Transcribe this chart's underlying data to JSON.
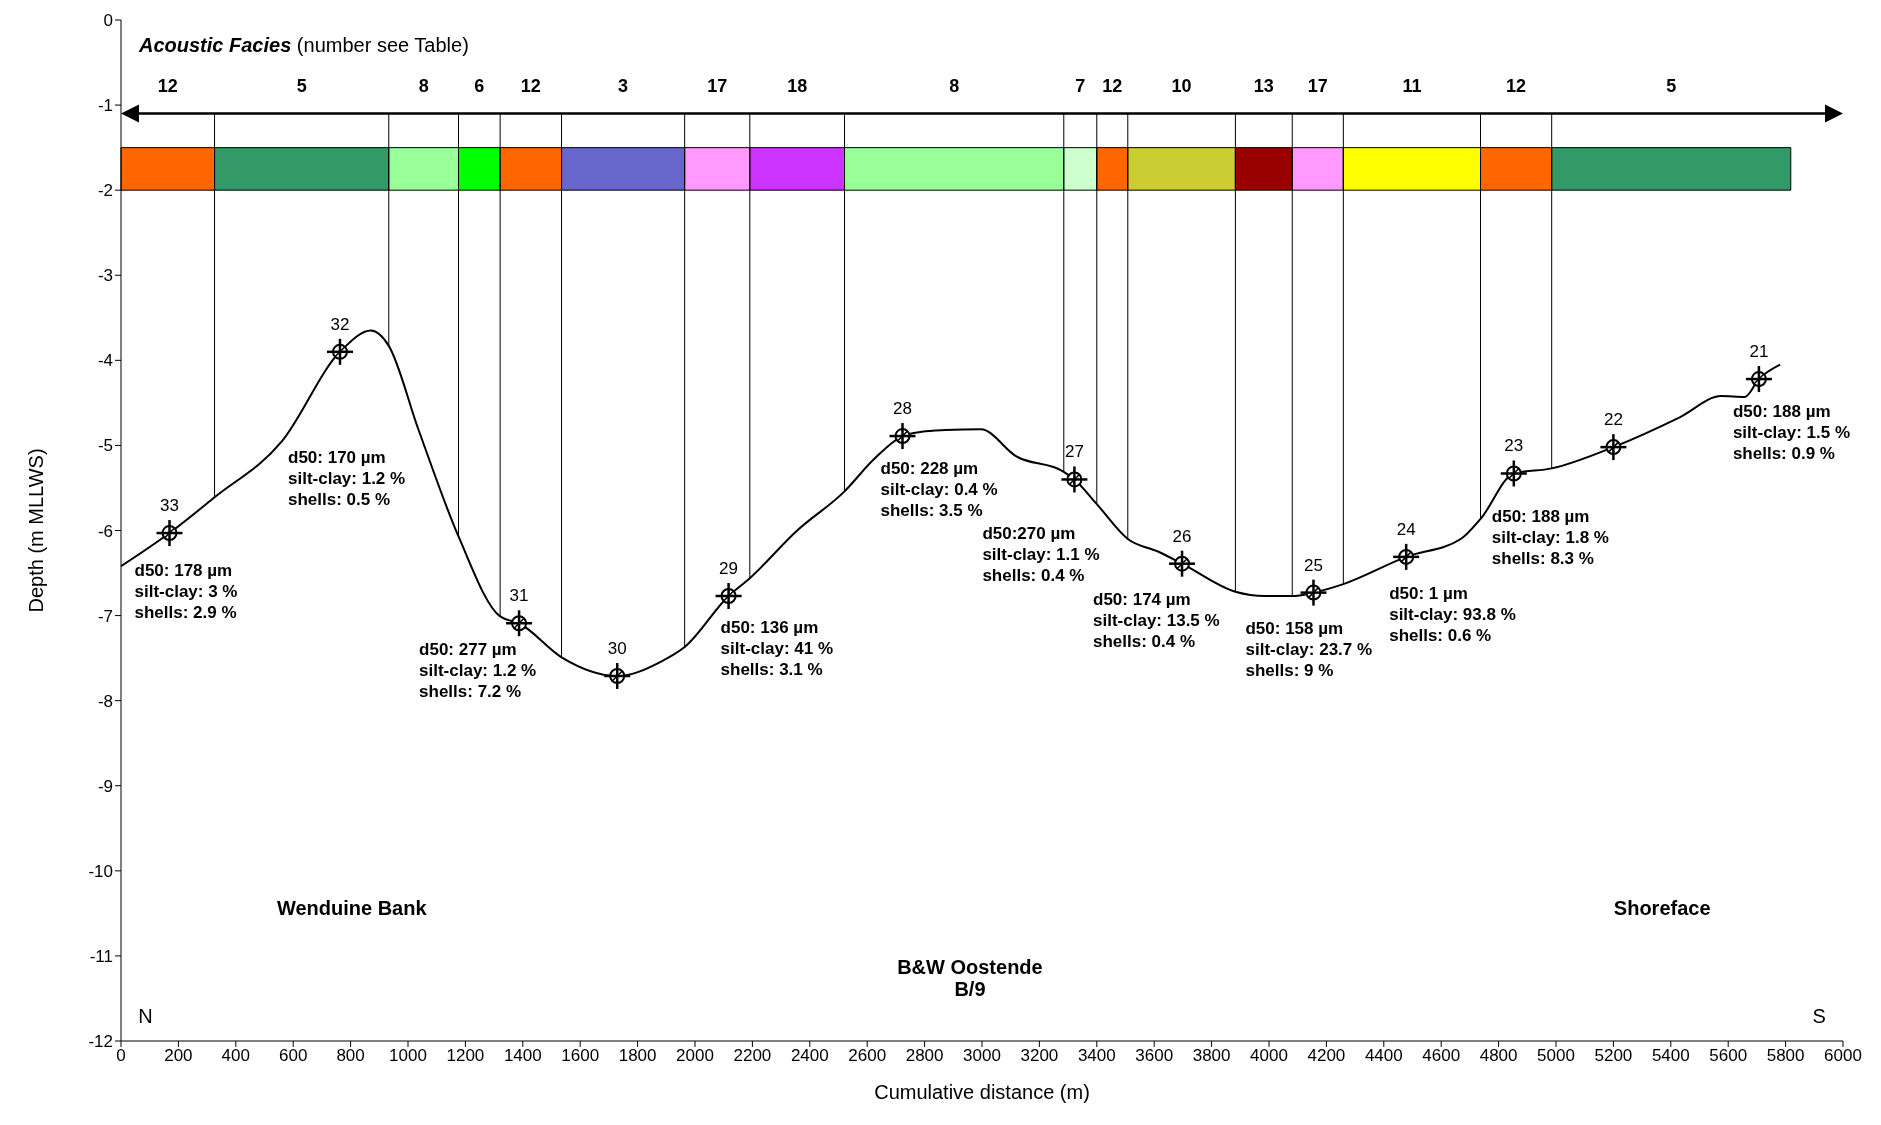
{
  "chart_data": {
    "type": "line",
    "xlabel": "Cumulative distance (m)",
    "ylabel": "Depth (m MLLWS)",
    "legend_title": "Acoustic Facies",
    "xlim": [
      0,
      6000
    ],
    "xticks": [
      0,
      200,
      400,
      600,
      800,
      1000,
      1200,
      1400,
      1600,
      1800,
      2000,
      2200,
      2400,
      2600,
      2800,
      3000,
      3200,
      3400,
      3600,
      3800,
      4000,
      4200,
      4400,
      4600,
      4800,
      5000,
      5200,
      5400,
      5600,
      5800,
      6000
    ],
    "ylim": [
      -12,
      0
    ],
    "yticks": [
      -12,
      -11,
      -10,
      -9,
      -8,
      -7,
      -6,
      -5,
      -4,
      -3,
      -2,
      -1,
      0
    ],
    "grid": false,
    "legend": false,
    "series": [
      {
        "color": "#000000",
        "line_style": "solid",
        "x": [
          0,
          169,
          326,
          561,
          763,
          871,
          933,
          1036,
          1176,
          1321,
          1387,
          1535,
          1729,
          1882,
          1964,
          2117,
          2191,
          2356,
          2521,
          2624,
          2723,
          2790,
          2872,
          2996,
          3120,
          3285,
          3322,
          3400,
          3508,
          3615,
          3697,
          3883,
          3986,
          4081,
          4155,
          4259,
          4478,
          4668,
          4738,
          4853,
          4985,
          5200,
          5431,
          5576,
          5658,
          5707,
          5781
        ],
        "values": [
          -6.42,
          -6.03,
          -5.61,
          -4.95,
          -3.9,
          -3.65,
          -3.83,
          -4.81,
          -6.07,
          -7.01,
          -7.09,
          -7.49,
          -7.71,
          -7.54,
          -7.37,
          -6.77,
          -6.56,
          -6.0,
          -5.54,
          -5.16,
          -4.89,
          -4.84,
          -4.82,
          -4.81,
          -5.13,
          -5.31,
          -5.4,
          -5.69,
          -6.1,
          -6.25,
          -6.39,
          -6.72,
          -6.77,
          -6.77,
          -6.73,
          -6.63,
          -6.31,
          -6.1,
          -5.86,
          -5.33,
          -5.27,
          -5.02,
          -4.67,
          -4.42,
          -4.43,
          -4.22,
          -4.05
        ]
      },
      {
        "type": "scatter",
        "color": "#000000",
        "marker": "circle",
        "x": [
          169,
          763,
          1387,
          1729,
          2117,
          2723,
          3322,
          3697,
          4155,
          4478,
          4853,
          5200,
          5707
        ],
        "values": [
          -6.03,
          -3.9,
          -7.09,
          -7.71,
          -6.77,
          -4.89,
          -5.4,
          -6.39,
          -6.73,
          -6.31,
          -5.33,
          -5.02,
          -4.22
        ]
      }
    ],
    "bands": [
      {
        "axis": "x",
        "from": 0,
        "to": 326,
        "label": "12",
        "color": "#ff6600"
      },
      {
        "axis": "x",
        "from": 326,
        "to": 933,
        "label": "5",
        "color": "#339966"
      },
      {
        "axis": "x",
        "from": 933,
        "to": 1176,
        "label": "8",
        "color": "#99ff99"
      },
      {
        "axis": "x",
        "from": 1176,
        "to": 1321,
        "label": "6",
        "color": "#00ff00"
      },
      {
        "axis": "x",
        "from": 1321,
        "to": 1535,
        "label": "12",
        "color": "#ff6600"
      },
      {
        "axis": "x",
        "from": 1535,
        "to": 1964,
        "label": "3",
        "color": "#6666cc"
      },
      {
        "axis": "x",
        "from": 1964,
        "to": 2191,
        "label": "17",
        "color": "#ff99ff"
      },
      {
        "axis": "x",
        "from": 2191,
        "to": 2521,
        "label": "18",
        "color": "#cc33ff"
      },
      {
        "axis": "x",
        "from": 2521,
        "to": 3285,
        "label": "8",
        "color": "#99ff99"
      },
      {
        "axis": "x",
        "from": 3285,
        "to": 3400,
        "label": "7",
        "color": "#ccffcc"
      },
      {
        "axis": "x",
        "from": 3400,
        "to": 3508,
        "label": "12",
        "color": "#ff6600"
      },
      {
        "axis": "x",
        "from": 3508,
        "to": 3883,
        "label": "10",
        "color": "#cccc33"
      },
      {
        "axis": "x",
        "from": 3883,
        "to": 4081,
        "label": "13",
        "color": "#990000"
      },
      {
        "axis": "x",
        "from": 4081,
        "to": 4259,
        "label": "17",
        "color": "#ff99ff"
      },
      {
        "axis": "x",
        "from": 4259,
        "to": 4737,
        "label": "11",
        "color": "#ffff00"
      },
      {
        "axis": "x",
        "from": 4737,
        "to": 4985,
        "label": "12",
        "color": "#ff6600"
      },
      {
        "axis": "x",
        "from": 4985,
        "to": 5818,
        "label": "5",
        "color": "#339966"
      }
    ],
    "ref_lines": [
      {
        "axis": "y",
        "value": -1.1,
        "color": "#000000"
      },
      {
        "axis": "x",
        "value": 326,
        "color": "#000000"
      },
      {
        "axis": "x",
        "value": 933,
        "color": "#000000"
      },
      {
        "axis": "x",
        "value": 1176,
        "color": "#000000"
      },
      {
        "axis": "x",
        "value": 1321,
        "color": "#000000"
      },
      {
        "axis": "x",
        "value": 1535,
        "color": "#000000"
      },
      {
        "axis": "x",
        "value": 1964,
        "color": "#000000"
      },
      {
        "axis": "x",
        "value": 2191,
        "color": "#000000"
      },
      {
        "axis": "x",
        "value": 2521,
        "color": "#000000"
      },
      {
        "axis": "x",
        "value": 3285,
        "color": "#000000"
      },
      {
        "axis": "x",
        "value": 3400,
        "color": "#000000"
      },
      {
        "axis": "x",
        "value": 3508,
        "color": "#000000"
      },
      {
        "axis": "x",
        "value": 3883,
        "color": "#000000"
      },
      {
        "axis": "x",
        "value": 4081,
        "color": "#000000"
      },
      {
        "axis": "x",
        "value": 4259,
        "color": "#000000"
      },
      {
        "axis": "x",
        "value": 4737,
        "color": "#000000"
      },
      {
        "axis": "x",
        "value": 4985,
        "color": "#000000"
      }
    ],
    "annotations": [
      {
        "text": "d50: 178 µm\nsilt-clay: 3 %\nshells: 2.9 %",
        "x": 169,
        "y": -6.03
      },
      {
        "text": "d50: 170 µm\nsilt-clay: 1.2 %\nshells: 0.5 %",
        "x": 561,
        "y": -4.95
      },
      {
        "text": "d50: 277 µm\nsilt-clay: 1.2 %\nshells: 7.2 %",
        "x": 1387,
        "y": -7.09
      },
      {
        "text": "d50: 136 µm\nsilt-clay: 41 %\nshells: 3.1 %",
        "x": 2117,
        "y": -6.77
      },
      {
        "text": "d50: 228 µm\nsilt-clay: 0.4 %\nshells: 3.5 %",
        "x": 2723,
        "y": -4.89
      },
      {
        "text": "d50:270 µm\nsilt-clay: 1.1 %\nshells: 0.4 %",
        "x": 3322,
        "y": -5.4
      },
      {
        "text": "d50: 174 µm\nsilt-clay: 13.5 %\nshells: 0.4 %",
        "x": 3697,
        "y": -6.39
      },
      {
        "text": "d50: 158 µm\nsilt-clay: 23.7 %\nshells: 9 %",
        "x": 4155,
        "y": -6.73
      },
      {
        "text": "d50: 1 µm\nsilt-clay: 93.8 %\nshells: 0.6 %",
        "x": 4478,
        "y": -6.31
      },
      {
        "text": "d50: 188 µm\nsilt-clay: 1.8 %\nshells: 8.3 %",
        "x": 4853,
        "y": -5.33
      },
      {
        "text": "d50: 188 µm\nsilt-clay: 1.5 %\nshells: 0.9 %",
        "x": 5707,
        "y": -4.22
      },
      {
        "text": "33",
        "x": 169,
        "y": -6.03
      },
      {
        "text": "32",
        "x": 763,
        "y": -3.9
      },
      {
        "text": "31",
        "x": 1387,
        "y": -7.09
      },
      {
        "text": "30",
        "x": 1729,
        "y": -7.71
      },
      {
        "text": "29",
        "x": 2117,
        "y": -6.77
      },
      {
        "text": "28",
        "x": 2723,
        "y": -4.89
      },
      {
        "text": "27",
        "x": 3322,
        "y": -5.4
      },
      {
        "text": "26",
        "x": 3697,
        "y": -6.39
      },
      {
        "text": "25",
        "x": 4155,
        "y": -6.73
      },
      {
        "text": "24",
        "x": 4478,
        "y": -6.31
      },
      {
        "text": "23",
        "x": 4853,
        "y": -5.33
      },
      {
        "text": "22",
        "x": 5200,
        "y": -5.02
      },
      {
        "text": "21",
        "x": 5707,
        "y": -4.22
      },
      "(number see Table)",
      "Wenduine Bank",
      "Shoreface",
      "B&W Oostende\nB/9",
      "N",
      "S"
    ]
  }
}
